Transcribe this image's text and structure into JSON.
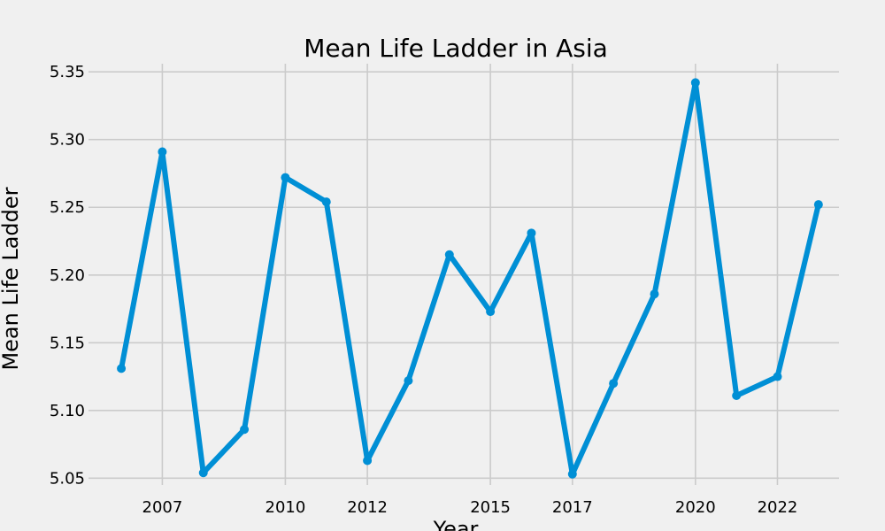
{
  "chart_data": {
    "type": "line",
    "title": "Mean Life Ladder in Asia",
    "xlabel": "Year",
    "ylabel": "Mean Life Ladder",
    "grid": true,
    "xlim": [
      2005.2,
      2023.5
    ],
    "ylim": [
      5.045,
      5.356
    ],
    "x_ticks": [
      2007,
      2010,
      2012,
      2015,
      2017,
      2020,
      2022
    ],
    "x_tick_labels": [
      "2007",
      "2010",
      "2012",
      "2015",
      "2017",
      "2020",
      "2022"
    ],
    "y_ticks": [
      5.05,
      5.1,
      5.15,
      5.2,
      5.25,
      5.3,
      5.35
    ],
    "y_tick_labels": [
      "5.05",
      "5.10",
      "5.15",
      "5.20",
      "5.25",
      "5.30",
      "5.35"
    ],
    "series": [
      {
        "color": "#008fd5",
        "x": [
          2006,
          2007,
          2008,
          2009,
          2010,
          2011,
          2012,
          2013,
          2014,
          2015,
          2016,
          2017,
          2018,
          2019,
          2020,
          2021,
          2022,
          2023
        ],
        "y": [
          5.131,
          5.291,
          5.054,
          5.086,
          5.272,
          5.254,
          5.063,
          5.122,
          5.215,
          5.173,
          5.231,
          5.053,
          5.12,
          5.186,
          5.342,
          5.111,
          5.125,
          5.252
        ]
      }
    ]
  }
}
